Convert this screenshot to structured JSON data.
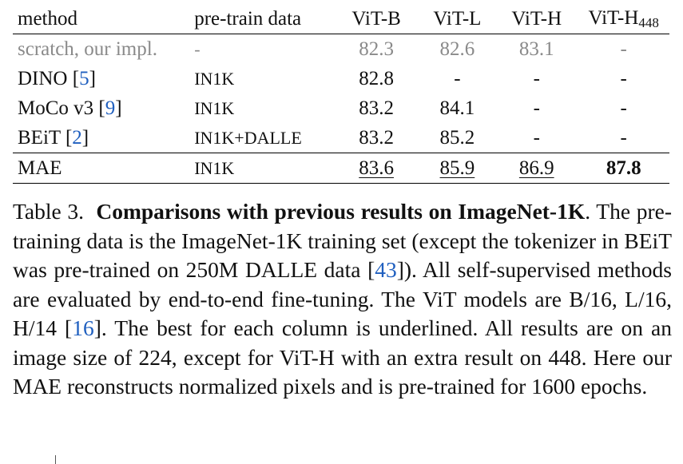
{
  "table": {
    "headers": {
      "method": "method",
      "data": "pre-train data",
      "vitb": "ViT-B",
      "vitl": "ViT-L",
      "vith": "ViT-H",
      "vith448_base": "ViT-H",
      "vith448_sub": "448"
    },
    "rows": [
      {
        "method": "scratch, our impl.",
        "data": "-",
        "vitb": "82.3",
        "vitl": "82.6",
        "vith": "83.1",
        "vith448": "-"
      },
      {
        "method": "DINO ",
        "ref": "5",
        "data": "IN1K",
        "vitb": "82.8",
        "vitl": "-",
        "vith": "-",
        "vith448": "-"
      },
      {
        "method": "MoCo v3 ",
        "ref": "9",
        "data": "IN1K",
        "vitb": "83.2",
        "vitl": "84.1",
        "vith": "-",
        "vith448": "-"
      },
      {
        "method": "BEiT ",
        "ref": "2",
        "data": "IN1K+DALLE",
        "vitb": "83.2",
        "vitl": "85.2",
        "vith": "-",
        "vith448": "-"
      },
      {
        "method": "MAE",
        "data": "IN1K",
        "vitb": "83.6",
        "vitl": "85.9",
        "vith": "86.9",
        "vith448": "87.8"
      }
    ]
  },
  "caption": {
    "label": "Table 3.",
    "bold_title": "Comparisons with previous results on ImageNet-1K",
    "text1": ". The pre-training data is the ImageNet-1K training set (except the tokenizer in BEiT was pre-trained on 250M DALLE data [",
    "ref1": "43",
    "text2": "]). All self-supervised methods are evaluated by end-to-end fine-tuning. The ViT models are B/16, L/16, H/14 [",
    "ref2": "16",
    "text3": "]. The best for each column is underlined. All results are on an image size of 224, except for ViT-H with an extra result on 448. Here our MAE reconstructs normalized pixels and is pre-trained for 1600 epochs."
  },
  "colors": {
    "link": "#1f5fbf",
    "gray": "#8a8a8a"
  }
}
